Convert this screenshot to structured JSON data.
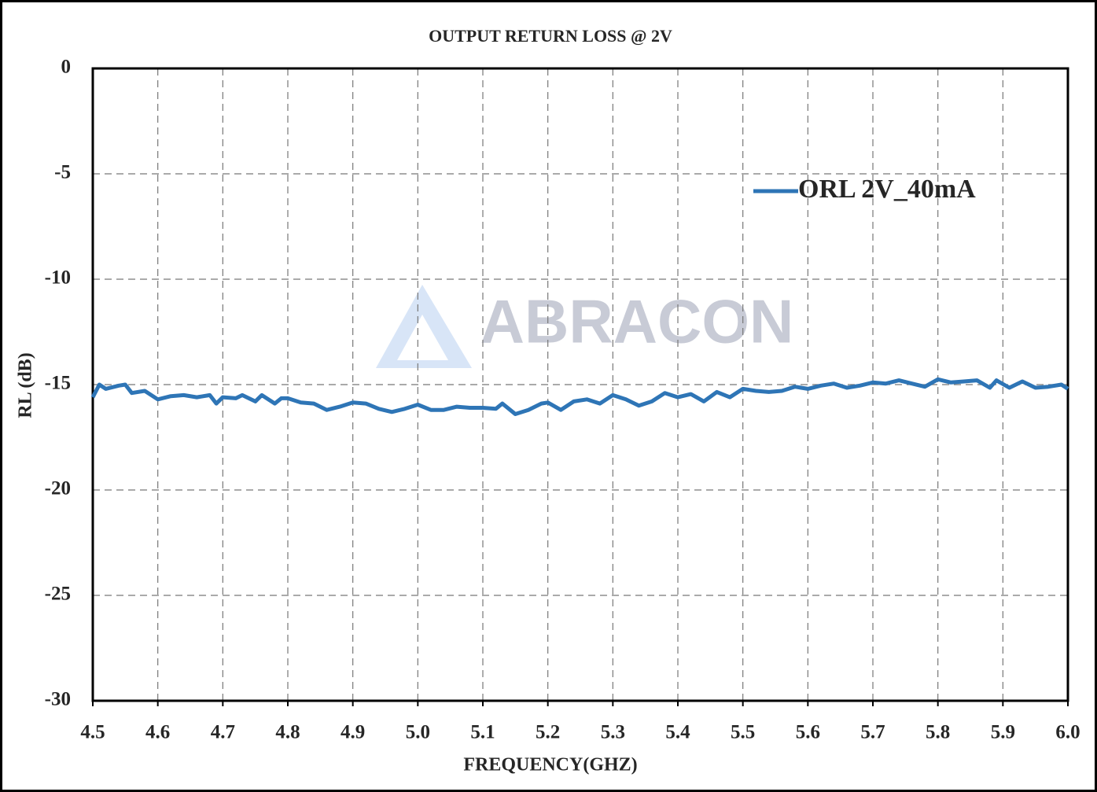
{
  "chart_data": {
    "type": "line",
    "title": "OUTPUT RETURN LOSS @ 2V",
    "xlabel": "FREQUENCY(GHZ)",
    "ylabel": "RL (dB)",
    "watermark": "ABRACON",
    "x": [
      4.5,
      4.51,
      4.52,
      4.54,
      4.55,
      4.56,
      4.58,
      4.6,
      4.62,
      4.64,
      4.66,
      4.68,
      4.69,
      4.7,
      4.72,
      4.73,
      4.75,
      4.76,
      4.78,
      4.79,
      4.8,
      4.82,
      4.84,
      4.86,
      4.88,
      4.9,
      4.92,
      4.94,
      4.96,
      4.98,
      5.0,
      5.02,
      5.04,
      5.06,
      5.08,
      5.1,
      5.12,
      5.13,
      5.15,
      5.17,
      5.19,
      5.2,
      5.22,
      5.24,
      5.26,
      5.28,
      5.3,
      5.32,
      5.34,
      5.36,
      5.38,
      5.4,
      5.42,
      5.44,
      5.46,
      5.48,
      5.5,
      5.52,
      5.54,
      5.56,
      5.58,
      5.6,
      5.62,
      5.64,
      5.66,
      5.68,
      5.7,
      5.72,
      5.74,
      5.76,
      5.78,
      5.8,
      5.82,
      5.84,
      5.86,
      5.88,
      5.89,
      5.91,
      5.93,
      5.95,
      5.97,
      5.99,
      6.0
    ],
    "series": [
      {
        "name": "ORL 2V_40mA",
        "color": "#2e75b6",
        "values": [
          -15.6,
          -15.0,
          -15.2,
          -15.05,
          -15.0,
          -15.4,
          -15.3,
          -15.7,
          -15.55,
          -15.5,
          -15.6,
          -15.5,
          -15.9,
          -15.6,
          -15.65,
          -15.5,
          -15.8,
          -15.5,
          -15.9,
          -15.65,
          -15.65,
          -15.85,
          -15.9,
          -16.2,
          -16.05,
          -15.85,
          -15.9,
          -16.15,
          -16.3,
          -16.15,
          -15.95,
          -16.2,
          -16.2,
          -16.05,
          -16.1,
          -16.1,
          -16.15,
          -15.9,
          -16.4,
          -16.2,
          -15.9,
          -15.85,
          -16.2,
          -15.8,
          -15.7,
          -15.9,
          -15.5,
          -15.7,
          -16.0,
          -15.8,
          -15.4,
          -15.6,
          -15.45,
          -15.8,
          -15.35,
          -15.6,
          -15.2,
          -15.3,
          -15.35,
          -15.3,
          -15.1,
          -15.2,
          -15.05,
          -14.95,
          -15.15,
          -15.05,
          -14.9,
          -14.95,
          -14.8,
          -14.95,
          -15.1,
          -14.75,
          -14.9,
          -14.85,
          -14.8,
          -15.15,
          -14.8,
          -15.15,
          -14.85,
          -15.15,
          -15.1,
          -15.0,
          -15.2
        ]
      }
    ],
    "xlim": [
      4.5,
      6.0
    ],
    "xticks": [
      4.5,
      4.6,
      4.7,
      4.8,
      4.9,
      {
        "value": 5,
        "label": "5.0"
      },
      5.1,
      5.2,
      5.3,
      5.4,
      5.5,
      5.6,
      5.7,
      5.8,
      5.9,
      {
        "value": 6,
        "label": "6.0"
      }
    ],
    "ylim": [
      -30,
      0
    ],
    "yticks": [
      -30,
      -25,
      -20,
      -15,
      -10,
      -5,
      0
    ],
    "grid": true,
    "legend_loc": "upper right"
  }
}
